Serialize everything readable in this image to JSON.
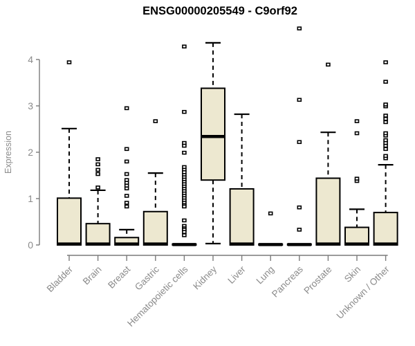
{
  "chart_data": {
    "type": "box",
    "title": "ENSG00000205549 - C9orf92",
    "ylabel": "Expression",
    "xlabel": "",
    "ylim": [
      0,
      4.7
    ],
    "yticks": [
      0,
      1,
      2,
      3,
      4
    ],
    "grid": false,
    "legend": "none",
    "categories": [
      "Bladder",
      "Brain",
      "Breast",
      "Gastric",
      "Hematopoietic cells",
      "Kidney",
      "Liver",
      "Lung",
      "Pancreas",
      "Prostate",
      "Skin",
      "Unknown / Other"
    ],
    "series": [
      {
        "name": "Bladder",
        "low": 0,
        "q1": 0,
        "median": 0.02,
        "q3": 1.01,
        "high": 2.51,
        "outliers": [
          3.94
        ]
      },
      {
        "name": "Brain",
        "low": 0,
        "q1": 0,
        "median": 0.02,
        "q3": 0.46,
        "high": 1.18,
        "outliers": [
          1.24,
          1.53,
          1.62,
          1.74,
          1.85
        ]
      },
      {
        "name": "Breast",
        "low": 0,
        "q1": 0,
        "median": 0.02,
        "q3": 0.16,
        "high": 0.33,
        "outliers": [
          0.83,
          0.91,
          1.06,
          1.22,
          1.28,
          1.34,
          1.4,
          1.53,
          1.8,
          2.07,
          2.95
        ]
      },
      {
        "name": "Gastric",
        "low": 0,
        "q1": 0,
        "median": 0.02,
        "q3": 0.72,
        "high": 1.55,
        "outliers": [
          2.67
        ]
      },
      {
        "name": "Hematopoietic cells",
        "low": 0,
        "q1": 0,
        "median": 0.01,
        "q3": 0.02,
        "high": 0.03,
        "outliers": [
          4.28,
          2.87,
          2.2,
          2.14,
          1.99,
          1.68,
          1.62,
          1.57,
          1.51,
          1.46,
          1.41,
          1.36,
          1.31,
          1.26,
          1.21,
          1.16,
          1.11,
          1.06,
          1.01,
          0.96,
          0.91,
          0.86,
          0.83,
          0.53,
          0.41,
          0.36,
          0.33,
          0.28,
          0.21
        ]
      },
      {
        "name": "Kidney",
        "low": 0.03,
        "q1": 1.4,
        "median": 2.34,
        "q3": 3.38,
        "high": 4.36,
        "outliers": []
      },
      {
        "name": "Liver",
        "low": 0,
        "q1": 0,
        "median": 0.02,
        "q3": 1.21,
        "high": 2.82,
        "outliers": []
      },
      {
        "name": "Lung",
        "low": 0,
        "q1": 0,
        "median": 0.01,
        "q3": 0.02,
        "high": 0.03,
        "outliers": [
          0.68
        ]
      },
      {
        "name": "Pancreas",
        "low": 0,
        "q1": 0,
        "median": 0.01,
        "q3": 0.02,
        "high": 0.03,
        "outliers": [
          0.33,
          0.81,
          2.22,
          3.13,
          4.67
        ]
      },
      {
        "name": "Prostate",
        "low": 0,
        "q1": 0,
        "median": 0.02,
        "q3": 1.44,
        "high": 2.43,
        "outliers": [
          3.89
        ]
      },
      {
        "name": "Skin",
        "low": 0,
        "q1": 0,
        "median": 0.02,
        "q3": 0.38,
        "high": 0.77,
        "outliers": [
          1.38,
          1.43,
          2.41,
          2.67
        ]
      },
      {
        "name": "Unknown / Other",
        "low": 0,
        "q1": 0,
        "median": 0.02,
        "q3": 0.7,
        "high": 1.73,
        "outliers": [
          1.87,
          1.92,
          2.07,
          2.14,
          2.2,
          2.26,
          2.36,
          2.41,
          2.65,
          2.72,
          2.79,
          2.99,
          3.03,
          3.52,
          3.94
        ]
      }
    ],
    "colors": {
      "box_fill": "#EDE8D0",
      "box_stroke": "#000000",
      "median": "#000000",
      "axis": "#7a7a7a",
      "tick_label": "#8a8a8a",
      "title": "#000000",
      "outlier_fill": "#ffffff",
      "background": "#ffffff"
    }
  }
}
